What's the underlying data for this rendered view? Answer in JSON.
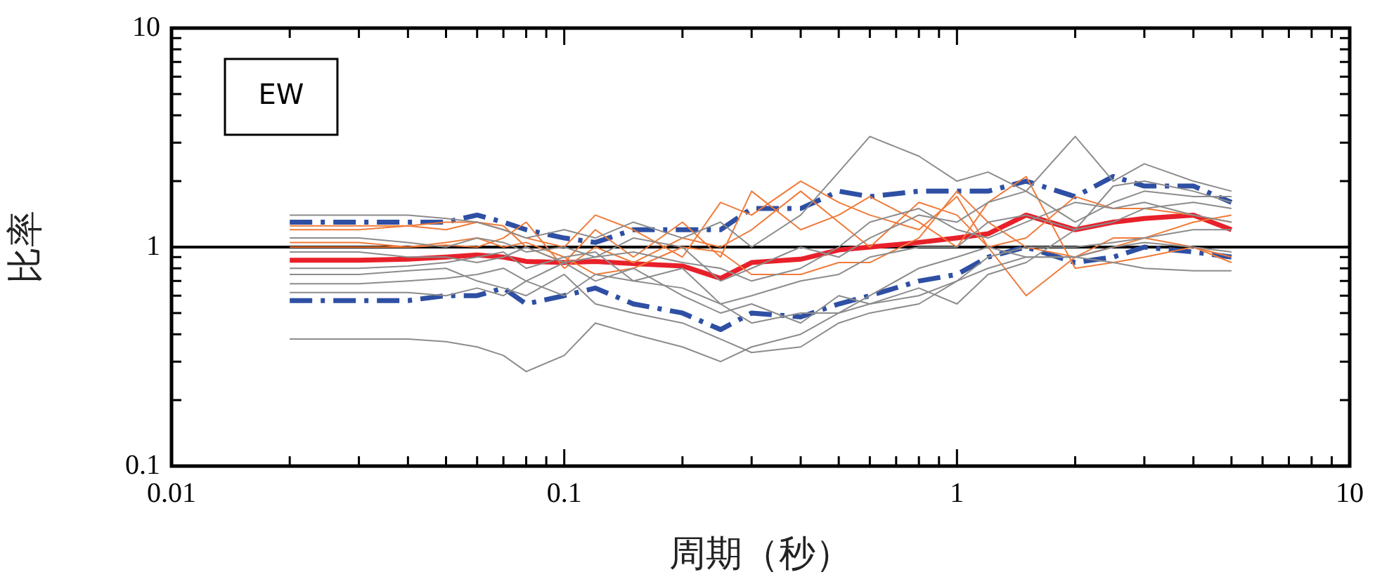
{
  "chart_data": {
    "type": "line",
    "xlabel": "周期（秒）",
    "ylabel": "比率",
    "annotations": [
      "EW"
    ],
    "log": "xy",
    "grid": false,
    "legend": false,
    "marker": "none",
    "x": [
      0.02,
      0.03,
      0.04,
      0.05,
      0.06,
      0.07,
      0.08,
      0.1,
      0.12,
      0.15,
      0.2,
      0.25,
      0.3,
      0.4,
      0.5,
      0.6,
      0.8,
      1,
      1.2,
      1.5,
      2,
      2.5,
      3,
      4,
      5
    ],
    "xlim": [
      0.01,
      10
    ],
    "ylim": [
      0.1,
      10
    ],
    "xticks": [
      0.01,
      {
        "value": 0.02,
        "label": null
      },
      {
        "value": 0.03,
        "label": null
      },
      {
        "value": 0.04,
        "label": null
      },
      {
        "value": 0.05,
        "label": null
      },
      {
        "value": 0.06,
        "label": null
      },
      {
        "value": 0.07,
        "label": null
      },
      {
        "value": 0.08,
        "label": null
      },
      {
        "value": 0.09,
        "label": null
      },
      0.1,
      {
        "value": 0.2,
        "label": null
      },
      {
        "value": 0.3,
        "label": null
      },
      {
        "value": 0.4,
        "label": null
      },
      {
        "value": 0.5,
        "label": null
      },
      {
        "value": 0.6,
        "label": null
      },
      {
        "value": 0.7,
        "label": null
      },
      {
        "value": 0.8,
        "label": null
      },
      {
        "value": 0.9,
        "label": null
      },
      1,
      {
        "value": 2,
        "label": null
      },
      {
        "value": 3,
        "label": null
      },
      {
        "value": 4,
        "label": null
      },
      {
        "value": 5,
        "label": null
      },
      {
        "value": 6,
        "label": null
      },
      {
        "value": 7,
        "label": null
      },
      {
        "value": 8,
        "label": null
      },
      {
        "value": 9,
        "label": null
      },
      10
    ],
    "yticks": [
      0.1,
      {
        "value": 0.2,
        "label": null
      },
      {
        "value": 0.3,
        "label": null
      },
      {
        "value": 0.4,
        "label": null
      },
      {
        "value": 0.5,
        "label": null
      },
      {
        "value": 0.6,
        "label": null
      },
      {
        "value": 0.7,
        "label": null
      },
      {
        "value": 0.8,
        "label": null
      },
      {
        "value": 0.9,
        "label": null
      },
      1,
      {
        "value": 2,
        "label": null
      },
      {
        "value": 3,
        "label": null
      },
      {
        "value": 4,
        "label": null
      },
      {
        "value": 5,
        "label": null
      },
      {
        "value": 6,
        "label": null
      },
      {
        "value": 7,
        "label": null
      },
      {
        "value": 8,
        "label": null
      },
      {
        "value": 9,
        "label": null
      },
      10
    ],
    "ref_lines": [
      {
        "axis": "y",
        "value": 1,
        "color": "#000000"
      }
    ],
    "series": [
      {
        "color": "#8c8c8c",
        "values": [
          1.4,
          1.4,
          1.4,
          1.35,
          1.3,
          1.2,
          1.1,
          1.2,
          1.1,
          1.3,
          1.1,
          1.3,
          1.0,
          1.4,
          2.2,
          3.2,
          2.6,
          2.0,
          2.2,
          1.8,
          3.2,
          2.0,
          2.4,
          2.0,
          1.8
        ]
      },
      {
        "color": "#8c8c8c",
        "values": [
          0.38,
          0.38,
          0.38,
          0.37,
          0.35,
          0.32,
          0.27,
          0.32,
          0.45,
          0.4,
          0.35,
          0.3,
          0.35,
          0.4,
          0.5,
          0.55,
          0.6,
          0.7,
          0.8,
          0.9,
          0.9,
          0.85,
          0.8,
          0.78,
          0.78
        ]
      },
      {
        "color": "#8c8c8c",
        "values": [
          0.75,
          0.75,
          0.78,
          0.8,
          0.7,
          0.65,
          0.6,
          0.75,
          0.55,
          0.5,
          0.45,
          0.38,
          0.33,
          0.35,
          0.45,
          0.5,
          0.55,
          0.7,
          0.9,
          1.0,
          1.0,
          1.05,
          1.1,
          1.2,
          1.2
        ]
      },
      {
        "color": "#8c8c8c",
        "values": [
          0.68,
          0.68,
          0.7,
          0.72,
          0.75,
          0.8,
          0.7,
          0.85,
          0.7,
          0.8,
          0.6,
          0.5,
          0.55,
          0.45,
          0.6,
          0.55,
          0.65,
          0.55,
          0.75,
          0.85,
          1.2,
          1.3,
          1.5,
          1.6,
          1.5
        ]
      },
      {
        "color": "#8c8c8c",
        "values": [
          1.1,
          1.1,
          1.05,
          1.0,
          1.1,
          1.05,
          0.95,
          1.0,
          0.9,
          0.95,
          0.85,
          0.8,
          0.7,
          0.8,
          1.0,
          1.3,
          1.5,
          1.2,
          1.1,
          1.3,
          1.6,
          1.5,
          1.6,
          1.4,
          1.3
        ]
      },
      {
        "color": "#8c8c8c",
        "values": [
          0.62,
          0.62,
          0.62,
          0.6,
          0.65,
          0.6,
          0.7,
          0.6,
          0.75,
          0.7,
          0.65,
          0.55,
          0.45,
          0.5,
          0.5,
          0.6,
          0.8,
          0.9,
          1.0,
          0.9,
          0.9,
          1.0,
          1.05,
          1.0,
          0.95
        ]
      },
      {
        "color": "#8c8c8c",
        "values": [
          0.95,
          0.95,
          0.9,
          0.9,
          0.85,
          0.9,
          1.0,
          0.85,
          0.9,
          1.1,
          1.0,
          0.7,
          0.8,
          1.0,
          0.9,
          1.1,
          1.4,
          1.3,
          1.6,
          1.8,
          1.3,
          1.6,
          1.8,
          1.7,
          1.7
        ]
      },
      {
        "color": "#8c8c8c",
        "values": [
          0.8,
          0.8,
          0.82,
          0.85,
          0.9,
          0.95,
          0.8,
          0.9,
          0.95,
          0.7,
          0.8,
          0.55,
          0.6,
          0.7,
          0.75,
          0.9,
          1.0,
          1.0,
          1.3,
          1.4,
          1.2,
          1.9,
          2.0,
          1.8,
          1.6
        ]
      },
      {
        "color": "#f07b3a",
        "values": [
          1.25,
          1.25,
          1.25,
          1.3,
          1.3,
          1.25,
          1.0,
          0.85,
          1.2,
          0.9,
          1.3,
          0.9,
          1.8,
          1.2,
          1.4,
          1.7,
          1.3,
          1.0,
          1.6,
          2.1,
          0.8,
          0.85,
          0.9,
          1.0,
          0.9
        ]
      },
      {
        "color": "#f07b3a",
        "values": [
          1.0,
          1.0,
          1.0,
          1.02,
          1.0,
          1.1,
          1.3,
          0.8,
          1.0,
          0.85,
          1.1,
          1.0,
          1.2,
          1.8,
          1.3,
          1.0,
          1.6,
          1.4,
          1.0,
          0.6,
          0.9,
          1.1,
          1.1,
          1.3,
          1.4
        ]
      },
      {
        "color": "#f07b3a",
        "values": [
          1.2,
          1.2,
          1.25,
          1.2,
          1.3,
          1.2,
          1.1,
          1.0,
          1.4,
          1.2,
          0.9,
          1.6,
          1.4,
          2.0,
          1.6,
          1.4,
          1.2,
          1.7,
          1.0,
          1.1,
          1.7,
          1.5,
          1.5,
          1.4,
          1.3
        ]
      },
      {
        "color": "#f07b3a",
        "values": [
          1.05,
          1.05,
          1.0,
          1.05,
          1.1,
          1.0,
          1.05,
          0.9,
          0.75,
          0.8,
          1.0,
          0.95,
          0.75,
          0.75,
          0.85,
          0.85,
          1.1,
          1.8,
          1.3,
          1.0,
          0.9,
          1.0,
          1.1,
          1.0,
          0.85
        ]
      },
      {
        "color": "#2e4fa3",
        "line_style": "dashed",
        "values": [
          1.3,
          1.3,
          1.3,
          1.3,
          1.4,
          1.3,
          1.2,
          1.1,
          1.05,
          1.2,
          1.2,
          1.2,
          1.5,
          1.5,
          1.8,
          1.7,
          1.8,
          1.8,
          1.8,
          2.0,
          1.7,
          2.1,
          1.9,
          1.9,
          1.6
        ]
      },
      {
        "color": "#2e4fa3",
        "line_style": "dashed",
        "values": [
          0.57,
          0.57,
          0.57,
          0.6,
          0.6,
          0.65,
          0.55,
          0.6,
          0.65,
          0.55,
          0.5,
          0.42,
          0.5,
          0.48,
          0.55,
          0.6,
          0.7,
          0.75,
          0.9,
          1.0,
          0.85,
          0.9,
          1.0,
          0.95,
          0.9
        ]
      },
      {
        "color": "#e8202a",
        "values": [
          0.87,
          0.87,
          0.88,
          0.9,
          0.92,
          0.9,
          0.86,
          0.85,
          0.86,
          0.84,
          0.82,
          0.72,
          0.85,
          0.88,
          0.97,
          1.0,
          1.05,
          1.1,
          1.15,
          1.4,
          1.2,
          1.3,
          1.35,
          1.4,
          1.2
        ]
      }
    ]
  }
}
